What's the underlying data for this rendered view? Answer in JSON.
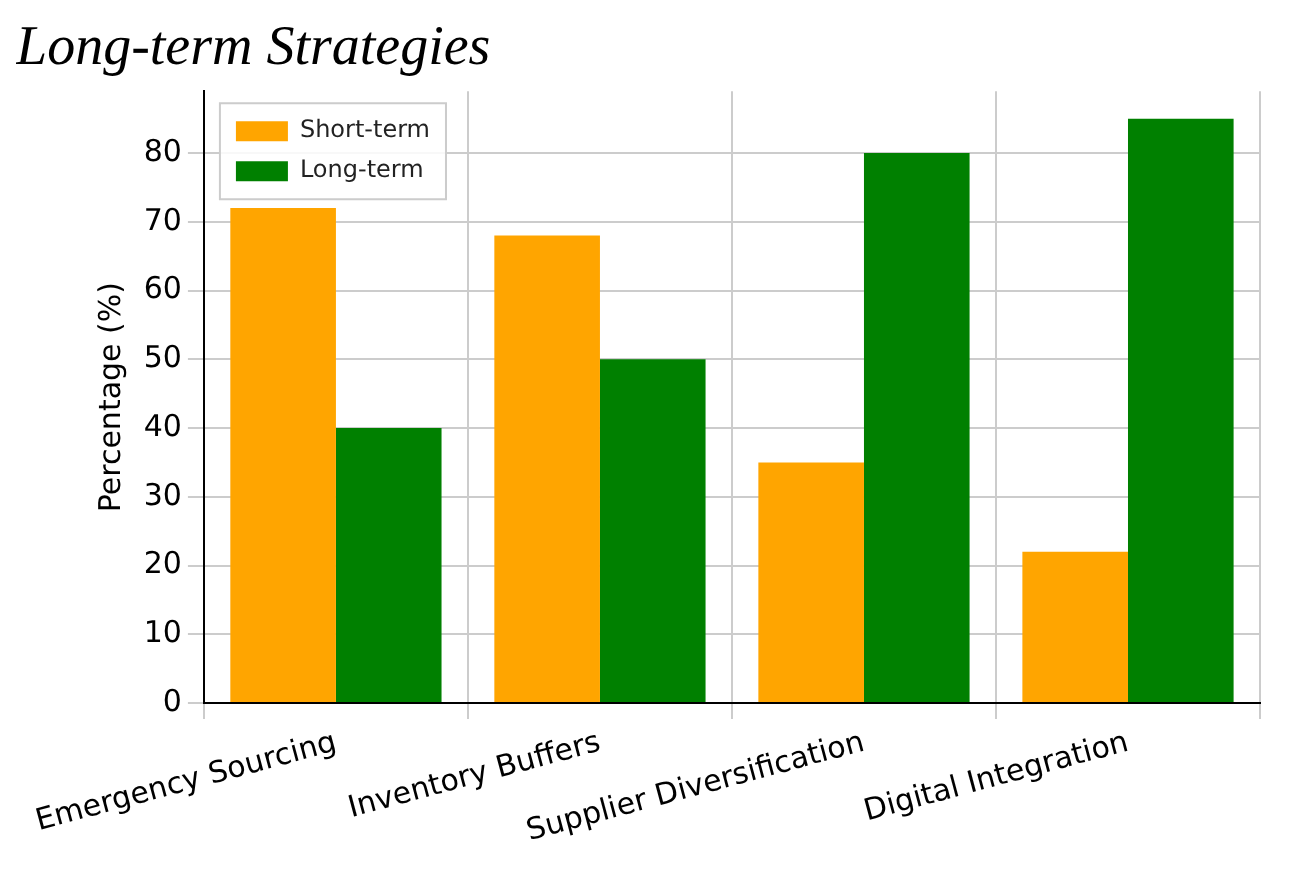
{
  "chart_data": {
    "type": "bar",
    "title": "Long-term Strategies",
    "ylabel": "Percentage (%)",
    "categories": [
      "Emergency Sourcing",
      "Inventory Buffers",
      "Supplier Diversification",
      "Digital Integration"
    ],
    "series": [
      {
        "name": "Short-term",
        "color": "#ffa500",
        "values": [
          72,
          68,
          35,
          22
        ]
      },
      {
        "name": "Long-term",
        "color": "#008000",
        "values": [
          40,
          50,
          80,
          85
        ]
      }
    ],
    "ylim": [
      0,
      89
    ],
    "yticks": [
      0,
      10,
      20,
      30,
      40,
      50,
      60,
      70,
      80
    ],
    "grid": true,
    "legend": "top left"
  }
}
